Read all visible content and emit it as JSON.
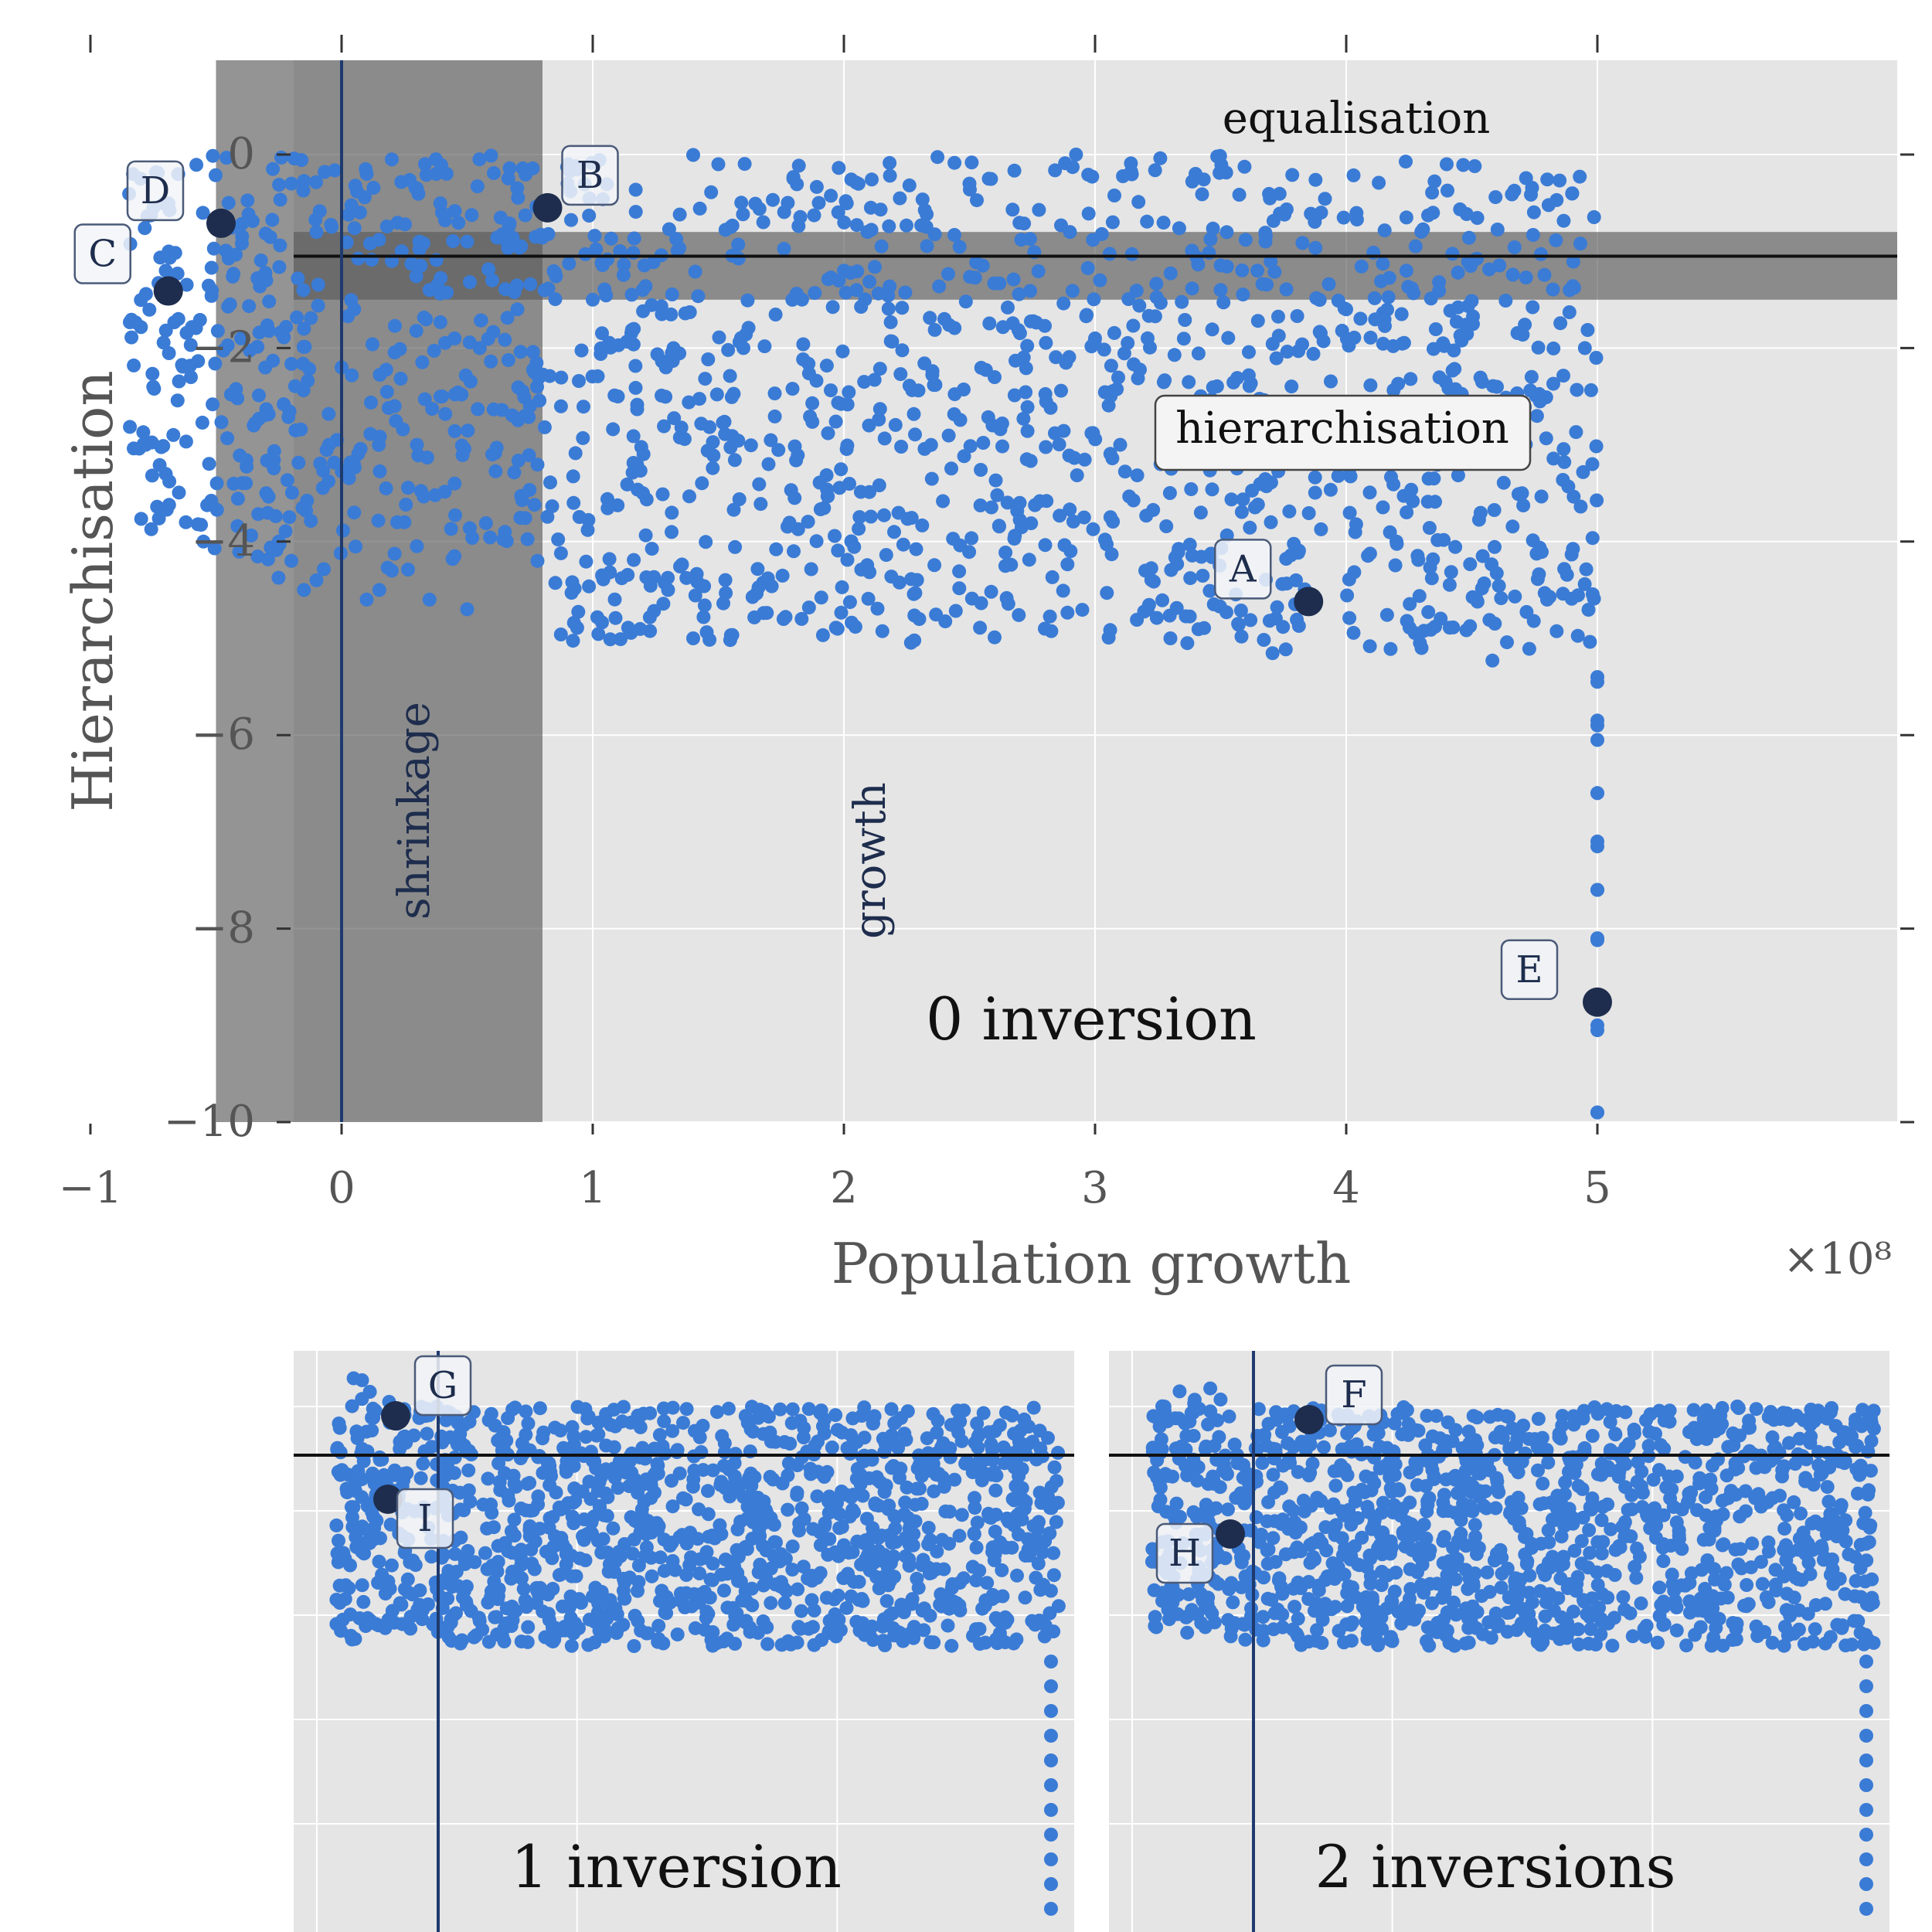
{
  "colors": {
    "panel_bg": "#e5e5e5",
    "grid": "#ffffff",
    "points": "#3a7bd5",
    "highlight": "#1e2d4d",
    "band": "#5a5a5a",
    "ref_line": "#111111",
    "vline": "#1e3a6e"
  },
  "chart_data": [
    {
      "type": "scatter",
      "panel": "main",
      "title": "0 inversion",
      "xlabel": "Population growth",
      "ylabel": "Hierarchisation",
      "x_multiplier_label": "×10⁸",
      "x_unit_note": "x in units of 1e8",
      "xlim": [
        -1.2,
        5.2
      ],
      "ylim": [
        -10,
        1
      ],
      "xticks": [
        -1,
        0,
        1,
        2,
        3,
        4,
        5
      ],
      "xtick_labels": [
        "−1",
        "0",
        "1",
        "2",
        "3",
        "4",
        "5"
      ],
      "yticks": [
        0,
        -2,
        -4,
        -6,
        -8,
        -10
      ],
      "ytick_labels": [
        "0",
        "−2",
        "−4",
        "−6",
        "−8",
        "−10"
      ],
      "grid": true,
      "annotations": {
        "equalisation": "equalisation",
        "hierarchisation": "hierarchisation",
        "shrinkage": "shrinkage",
        "growth": "growth"
      },
      "vertical_band_x": [
        -0.5,
        0.8
      ],
      "horizontal_band_y": [
        -1.5,
        -0.8
      ],
      "ref_hline_y": -1.05,
      "ref_vline_x": 0,
      "points_estimated": [
        [
          -0.8,
          -0.25
        ],
        [
          -0.75,
          -0.55
        ],
        [
          -0.7,
          -1.2
        ],
        [
          -0.65,
          -1.7
        ],
        [
          -0.6,
          -2.3
        ],
        [
          -0.75,
          -2.4
        ],
        [
          -0.7,
          -3.3
        ],
        [
          -0.62,
          -3.8
        ],
        [
          -0.55,
          -4.0
        ],
        [
          -0.78,
          -3.0
        ],
        [
          -0.45,
          -0.5
        ],
        [
          -0.4,
          -1.9
        ],
        [
          -0.35,
          -2.8
        ],
        [
          -0.3,
          -3.5
        ],
        [
          -0.25,
          -4.0
        ],
        [
          -0.2,
          -4.2
        ],
        [
          -0.15,
          -4.5
        ],
        [
          -0.1,
          -4.4
        ],
        [
          -0.05,
          -3.0
        ],
        [
          0.0,
          -2.2
        ],
        [
          0.05,
          -3.7
        ],
        [
          0.1,
          -4.6
        ],
        [
          0.15,
          -4.5
        ],
        [
          0.2,
          -4.3
        ],
        [
          0.25,
          -3.8
        ],
        [
          0.3,
          -3.0
        ],
        [
          0.35,
          -4.6
        ],
        [
          0.4,
          -2.5
        ],
        [
          0.45,
          -3.4
        ],
        [
          0.5,
          -4.7
        ],
        [
          0.55,
          -2.0
        ],
        [
          0.6,
          -3.1
        ],
        [
          0.65,
          -3.9
        ],
        [
          0.7,
          -1.6
        ],
        [
          0.75,
          -2.6
        ],
        [
          0.78,
          -4.2
        ],
        [
          0.1,
          -0.2
        ],
        [
          0.2,
          -0.05
        ],
        [
          0.3,
          -0.35
        ],
        [
          0.4,
          -0.6
        ],
        [
          -0.2,
          -0.3
        ],
        [
          -0.1,
          -0.8
        ],
        [
          0.5,
          -0.9
        ],
        [
          0.6,
          -1.3
        ],
        [
          0.2,
          -1.1
        ],
        [
          -0.3,
          -1.3
        ],
        [
          0.35,
          -1.4
        ],
        [
          0.05,
          -1.6
        ],
        [
          -0.15,
          -1.8
        ],
        [
          0.45,
          -1.9
        ],
        [
          0.9,
          -0.3
        ],
        [
          1.0,
          -1.5
        ],
        [
          1.1,
          -2.5
        ],
        [
          1.2,
          -3.5
        ],
        [
          1.3,
          -4.5
        ],
        [
          1.4,
          -5.0
        ],
        [
          1.5,
          -0.1
        ],
        [
          1.6,
          -2.0
        ],
        [
          1.7,
          -3.2
        ],
        [
          1.8,
          -4.1
        ],
        [
          1.9,
          -0.5
        ],
        [
          2.0,
          -1.2
        ],
        [
          2.1,
          -2.8
        ],
        [
          2.2,
          -3.9
        ],
        [
          2.3,
          -4.8
        ],
        [
          2.4,
          -1.7
        ],
        [
          2.5,
          -0.3
        ],
        [
          2.6,
          -2.3
        ],
        [
          2.7,
          -3.6
        ],
        [
          2.8,
          -4.9
        ],
        [
          2.9,
          -0.8
        ],
        [
          3.0,
          -1.9
        ],
        [
          3.1,
          -3.0
        ],
        [
          3.2,
          -4.3
        ],
        [
          3.3,
          -5.0
        ],
        [
          3.4,
          -0.2
        ],
        [
          3.5,
          -1.4
        ],
        [
          3.6,
          -2.7
        ],
        [
          3.7,
          -3.8
        ],
        [
          3.8,
          -4.4
        ],
        [
          3.9,
          -0.6
        ],
        [
          4.0,
          -1.6
        ],
        [
          4.1,
          -2.9
        ],
        [
          4.2,
          -4.0
        ],
        [
          4.3,
          -5.1
        ],
        [
          4.4,
          -0.1
        ],
        [
          4.5,
          -1.1
        ],
        [
          4.6,
          -2.4
        ],
        [
          4.7,
          -3.5
        ],
        [
          4.8,
          -4.6
        ],
        [
          4.9,
          -0.4
        ],
        [
          4.95,
          -2.0
        ],
        [
          4.98,
          -3.2
        ],
        [
          5.0,
          -5.4
        ],
        [
          5.0,
          -5.9
        ],
        [
          5.0,
          -6.6
        ],
        [
          5.0,
          -7.1
        ],
        [
          5.0,
          -7.6
        ],
        [
          5.0,
          -8.1
        ],
        [
          5.0,
          -9.0
        ],
        [
          5.0,
          -9.9
        ]
      ],
      "highlighted": [
        {
          "label": "A",
          "x": 3.85,
          "y": -4.62
        },
        {
          "label": "B",
          "x": 0.82,
          "y": -0.55
        },
        {
          "label": "C",
          "x": -0.69,
          "y": -1.41
        },
        {
          "label": "D",
          "x": -0.48,
          "y": -0.71
        },
        {
          "label": "E",
          "x": 5.0,
          "y": -8.76
        }
      ]
    },
    {
      "type": "scatter",
      "panel": "inset-left",
      "title": "1 inversion",
      "highlighted": [
        {
          "label": "G",
          "x": null,
          "y": null
        },
        {
          "label": "I",
          "x": null,
          "y": null
        }
      ]
    },
    {
      "type": "scatter",
      "panel": "inset-right",
      "title": "2 inversions",
      "highlighted": [
        {
          "label": "F",
          "x": null,
          "y": null
        },
        {
          "label": "H",
          "x": null,
          "y": null
        }
      ]
    }
  ]
}
